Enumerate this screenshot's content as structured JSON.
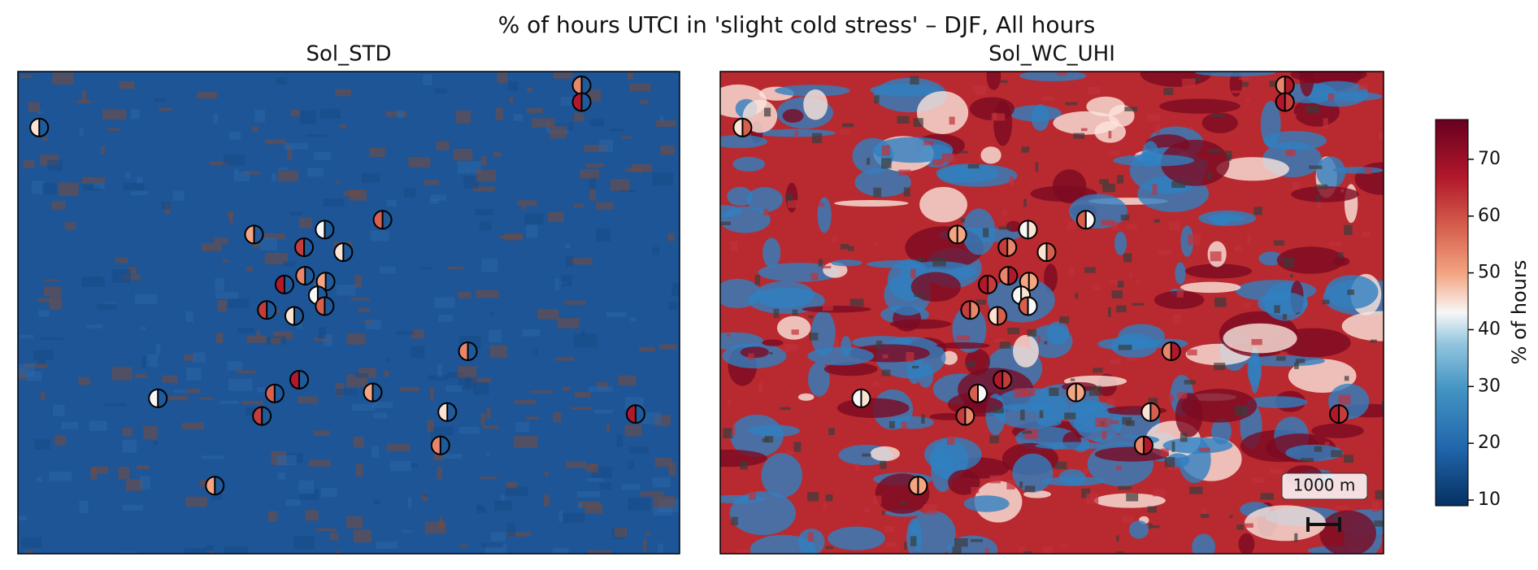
{
  "title": "% of hours UTCI in 'slight cold stress' – DJF, All hours",
  "panels": [
    {
      "title": "Sol_STD"
    },
    {
      "title": "Sol_WC_UHI"
    }
  ],
  "scale_bar": {
    "label": "1000 m"
  },
  "colorbar": {
    "label": "% of hours",
    "lim": [
      9,
      77
    ],
    "ticks": [
      10,
      20,
      30,
      40,
      50,
      60,
      70
    ]
  }
}
